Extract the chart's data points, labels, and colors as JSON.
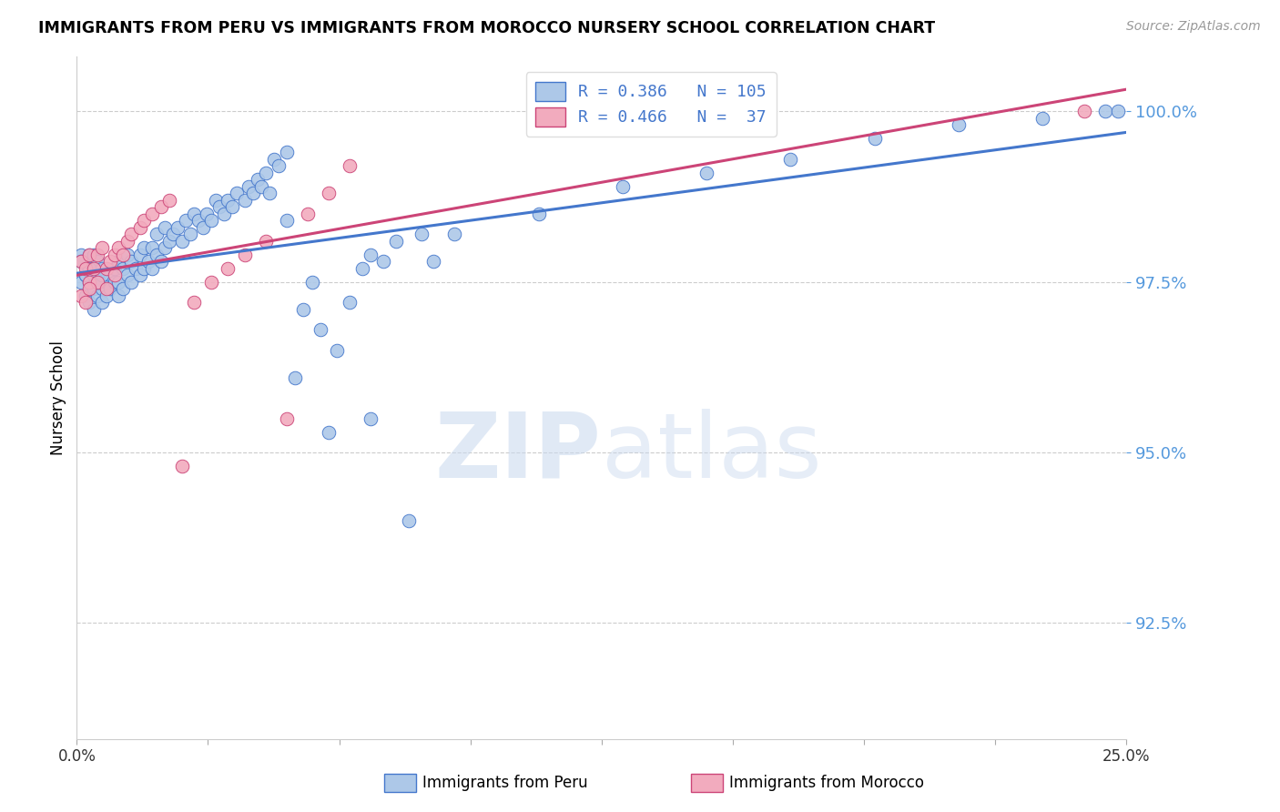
{
  "title": "IMMIGRANTS FROM PERU VS IMMIGRANTS FROM MOROCCO NURSERY SCHOOL CORRELATION CHART",
  "source": "Source: ZipAtlas.com",
  "ylabel": "Nursery School",
  "R_peru": 0.386,
  "N_peru": 105,
  "R_morocco": 0.466,
  "N_morocco": 37,
  "color_peru": "#adc8e8",
  "color_morocco": "#f2abbe",
  "line_color_peru": "#4477cc",
  "line_color_morocco": "#cc4477",
  "ytick_color": "#5599dd",
  "xmin": 0.0,
  "xmax": 0.25,
  "ymin": 0.908,
  "ymax": 1.008,
  "ytick_vals": [
    0.925,
    0.95,
    0.975,
    1.0
  ],
  "ytick_labels": [
    "92.5%",
    "95.0%",
    "97.5%",
    "100.0%"
  ],
  "legend_peru": "Immigrants from Peru",
  "legend_morocco": "Immigrants from Morocco",
  "watermark_zip": "ZIP",
  "watermark_atlas": "atlas",
  "background_color": "#ffffff",
  "grid_color": "#cccccc",
  "peru_x": [
    0.001,
    0.001,
    0.002,
    0.002,
    0.003,
    0.003,
    0.003,
    0.003,
    0.004,
    0.004,
    0.004,
    0.004,
    0.005,
    0.005,
    0.005,
    0.006,
    0.006,
    0.006,
    0.007,
    0.007,
    0.008,
    0.008,
    0.009,
    0.009,
    0.01,
    0.01,
    0.01,
    0.011,
    0.011,
    0.012,
    0.012,
    0.013,
    0.013,
    0.014,
    0.015,
    0.015,
    0.016,
    0.016,
    0.017,
    0.018,
    0.018,
    0.019,
    0.019,
    0.02,
    0.021,
    0.021,
    0.022,
    0.023,
    0.024,
    0.025,
    0.026,
    0.027,
    0.028,
    0.029,
    0.03,
    0.031,
    0.032,
    0.033,
    0.034,
    0.035,
    0.036,
    0.037,
    0.038,
    0.04,
    0.041,
    0.042,
    0.043,
    0.044,
    0.045,
    0.046,
    0.047,
    0.048,
    0.05,
    0.052,
    0.054,
    0.056,
    0.058,
    0.06,
    0.062,
    0.065,
    0.068,
    0.07,
    0.073,
    0.076,
    0.079,
    0.082,
    0.085,
    0.05,
    0.07,
    0.09,
    0.11,
    0.13,
    0.15,
    0.17,
    0.19,
    0.21,
    0.23,
    0.245,
    0.248,
    0.001,
    0.002,
    0.003,
    0.004,
    0.005,
    0.006
  ],
  "peru_y": [
    0.979,
    0.975,
    0.976,
    0.973,
    0.979,
    0.977,
    0.975,
    0.972,
    0.979,
    0.976,
    0.974,
    0.971,
    0.978,
    0.975,
    0.973,
    0.977,
    0.974,
    0.972,
    0.975,
    0.973,
    0.976,
    0.974,
    0.977,
    0.975,
    0.978,
    0.975,
    0.973,
    0.977,
    0.974,
    0.979,
    0.976,
    0.978,
    0.975,
    0.977,
    0.979,
    0.976,
    0.98,
    0.977,
    0.978,
    0.977,
    0.98,
    0.982,
    0.979,
    0.978,
    0.983,
    0.98,
    0.981,
    0.982,
    0.983,
    0.981,
    0.984,
    0.982,
    0.985,
    0.984,
    0.983,
    0.985,
    0.984,
    0.987,
    0.986,
    0.985,
    0.987,
    0.986,
    0.988,
    0.987,
    0.989,
    0.988,
    0.99,
    0.989,
    0.991,
    0.988,
    0.993,
    0.992,
    0.994,
    0.961,
    0.971,
    0.975,
    0.968,
    0.953,
    0.965,
    0.972,
    0.977,
    0.955,
    0.978,
    0.981,
    0.94,
    0.982,
    0.978,
    0.984,
    0.979,
    0.982,
    0.985,
    0.989,
    0.991,
    0.993,
    0.996,
    0.998,
    0.999,
    1.0,
    1.0,
    0.978,
    0.976,
    0.977,
    0.976,
    0.975,
    0.976
  ],
  "morocco_x": [
    0.001,
    0.002,
    0.003,
    0.003,
    0.004,
    0.005,
    0.005,
    0.006,
    0.007,
    0.007,
    0.008,
    0.009,
    0.009,
    0.01,
    0.011,
    0.012,
    0.013,
    0.015,
    0.016,
    0.018,
    0.02,
    0.022,
    0.025,
    0.028,
    0.032,
    0.036,
    0.04,
    0.045,
    0.05,
    0.055,
    0.06,
    0.065,
    0.12,
    0.24,
    0.001,
    0.002,
    0.003
  ],
  "morocco_y": [
    0.978,
    0.977,
    0.979,
    0.975,
    0.977,
    0.979,
    0.975,
    0.98,
    0.977,
    0.974,
    0.978,
    0.979,
    0.976,
    0.98,
    0.979,
    0.981,
    0.982,
    0.983,
    0.984,
    0.985,
    0.986,
    0.987,
    0.948,
    0.972,
    0.975,
    0.977,
    0.979,
    0.981,
    0.955,
    0.985,
    0.988,
    0.992,
    0.999,
    1.0,
    0.973,
    0.972,
    0.974
  ]
}
